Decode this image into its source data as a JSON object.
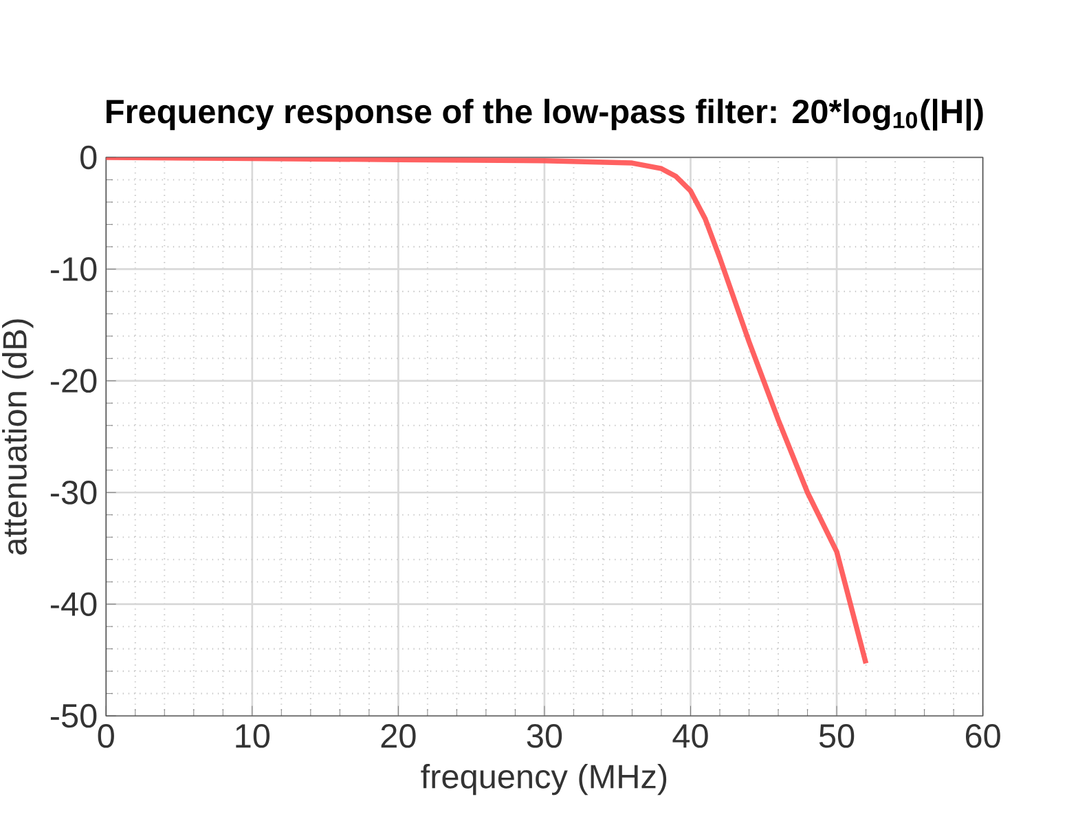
{
  "chart_data": {
    "type": "line",
    "title": "Frequency response of the low-pass filter: 20*log$_{10}$(|H|)",
    "xlabel": "frequency (MHz)",
    "ylabel": "attenuation (dB)",
    "x": [
      0,
      10,
      20,
      30,
      36,
      38,
      39,
      40,
      41,
      42,
      44,
      46,
      48,
      50,
      52
    ],
    "series": [
      {
        "color": "#ff5050",
        "values": [
          0,
          -0.1,
          -0.2,
          -0.3,
          -0.5,
          -1.0,
          -1.7,
          -3,
          -5.5,
          -9,
          -16.5,
          -23.5,
          -30,
          -35.3,
          -45.3
        ]
      }
    ],
    "xlim": [
      0,
      60
    ],
    "ylim": [
      -50,
      0
    ],
    "xticks": [
      0,
      10,
      20,
      30,
      40,
      50,
      60
    ],
    "yticks": [
      -50,
      -40,
      -30,
      -20,
      -10,
      0
    ],
    "grid": true,
    "marker": "none",
    "line_style": "solid"
  }
}
